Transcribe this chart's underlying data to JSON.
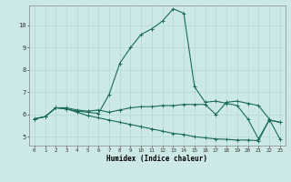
{
  "xlabel": "Humidex (Indice chaleur)",
  "background_color": "#cce9e7",
  "line_color": "#1a6b5a",
  "grid_color": "#b0d8d5",
  "xlim": [
    -0.5,
    23.5
  ],
  "ylim": [
    4.6,
    10.9
  ],
  "yticks": [
    5,
    6,
    7,
    8,
    9,
    10
  ],
  "xticks": [
    0,
    1,
    2,
    3,
    4,
    5,
    6,
    7,
    8,
    9,
    10,
    11,
    12,
    13,
    14,
    15,
    16,
    17,
    18,
    19,
    20,
    21,
    22,
    23
  ],
  "series1_x": [
    0,
    1,
    2,
    3,
    4,
    5,
    6,
    7,
    8,
    9,
    10,
    11,
    12,
    13,
    14,
    15,
    16,
    17,
    18,
    19,
    20,
    21,
    22,
    23
  ],
  "series1_y": [
    5.8,
    5.9,
    6.3,
    6.3,
    6.2,
    6.15,
    6.2,
    6.1,
    6.2,
    6.3,
    6.35,
    6.35,
    6.4,
    6.4,
    6.45,
    6.45,
    6.45,
    6.0,
    6.55,
    6.6,
    6.5,
    6.4,
    5.8,
    4.9
  ],
  "series2_x": [
    0,
    1,
    2,
    3,
    4,
    5,
    6,
    7,
    8,
    9,
    10,
    11,
    12,
    13,
    14,
    15,
    16,
    17,
    18,
    19,
    20,
    21,
    22,
    23
  ],
  "series2_y": [
    5.8,
    5.9,
    6.3,
    6.25,
    6.15,
    6.1,
    6.05,
    6.9,
    8.3,
    9.0,
    9.6,
    9.85,
    10.2,
    10.75,
    10.55,
    7.25,
    6.55,
    6.6,
    6.5,
    6.4,
    5.8,
    4.9,
    5.75,
    5.65
  ],
  "series3_x": [
    0,
    1,
    2,
    3,
    4,
    5,
    6,
    7,
    8,
    9,
    10,
    11,
    12,
    13,
    14,
    15,
    16,
    17,
    18,
    19,
    20,
    21,
    22,
    23
  ],
  "series3_y": [
    5.8,
    5.9,
    6.3,
    6.25,
    6.1,
    5.95,
    5.85,
    5.75,
    5.65,
    5.55,
    5.45,
    5.35,
    5.25,
    5.15,
    5.1,
    5.0,
    4.95,
    4.9,
    4.88,
    4.85,
    4.85,
    4.82,
    5.75,
    5.65
  ]
}
